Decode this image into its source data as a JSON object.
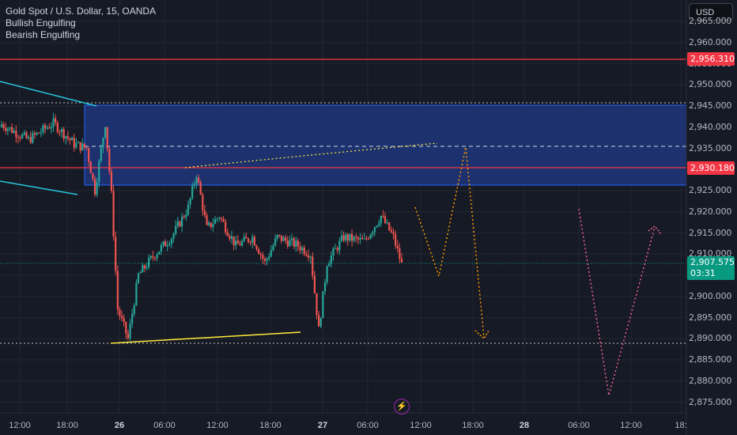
{
  "header": {
    "title": "Gold Spot / U.S. Dollar, 15, OANDA",
    "indicators": [
      "Bullish Engulfing",
      "Bearish Engulfing"
    ],
    "currency_button": "USD"
  },
  "price_axis": {
    "ticks": [
      "2,965.000",
      "2,960.000",
      "2,955.000",
      "2,950.000",
      "2,945.000",
      "2,940.000",
      "2,935.000",
      "2,930.000",
      "2,925.000",
      "2,920.000",
      "2,915.000",
      "2,910.000",
      "2,905.000",
      "2,900.000",
      "2,895.000",
      "2,890.000",
      "2,885.000",
      "2,880.000",
      "2,875.000"
    ],
    "tick_values": [
      2965,
      2960,
      2955,
      2950,
      2945,
      2940,
      2935,
      2930,
      2925,
      2920,
      2915,
      2910,
      2905,
      2900,
      2895,
      2890,
      2885,
      2880,
      2875
    ],
    "labels": {
      "resistance": "2,956.310",
      "zone_top": "2,930.180",
      "current_price": "2,907.575",
      "countdown": "03:31"
    }
  },
  "time_axis": {
    "ticks": [
      {
        "label": "12:00",
        "bold": false
      },
      {
        "label": "18:00",
        "bold": false
      },
      {
        "label": "26",
        "bold": true
      },
      {
        "label": "06:00",
        "bold": false
      },
      {
        "label": "12:00",
        "bold": false
      },
      {
        "label": "18:00",
        "bold": false
      },
      {
        "label": "27",
        "bold": true
      },
      {
        "label": "06:00",
        "bold": false
      },
      {
        "label": "12:00",
        "bold": false
      },
      {
        "label": "18:00",
        "bold": false
      },
      {
        "label": "28",
        "bold": true
      },
      {
        "label": "06:00",
        "bold": false
      },
      {
        "label": "12:00",
        "bold": false
      },
      {
        "label": "18:"
      }
    ]
  },
  "colors": {
    "background": "#161a25",
    "grid": "#232632",
    "bull": "#26a69a",
    "bear": "#ef5350",
    "zone_fill": "#1e3a8a",
    "zone_border": "#2962ff",
    "red_line": "#f23645",
    "cyan_line": "#26c6da",
    "yellow_line": "#ffeb3b",
    "orange_path": "#ff9800",
    "pink_path": "#f06292",
    "accent_green": "#089981"
  },
  "chart_data": {
    "type": "candlestick",
    "title": "Gold Spot / U.S. Dollar, 15, OANDA",
    "ylim": [
      2872,
      2968
    ],
    "horizontal_levels": [
      2956.31,
      2930.18,
      2945.5,
      2888.5
    ],
    "zone": {
      "from": 2926.0,
      "to": 2945.0
    },
    "last_price": 2907.575,
    "segments": [
      {
        "from": 2941,
        "to": 2937,
        "n": 14
      },
      {
        "from": 2937,
        "to": 2941,
        "n": 12
      },
      {
        "from": 2941,
        "to": 2936,
        "n": 10
      },
      {
        "from": 2936,
        "to": 2935,
        "n": 6
      },
      {
        "from": 2935,
        "to": 2925,
        "n": 4
      },
      {
        "from": 2925,
        "to": 2941,
        "n": 5
      },
      {
        "from": 2941,
        "to": 2924,
        "n": 3
      },
      {
        "from": 2924,
        "to": 2897,
        "n": 3
      },
      {
        "from": 2897,
        "to": 2890,
        "n": 5
      },
      {
        "from": 2890,
        "to": 2905,
        "n": 5
      },
      {
        "from": 2905,
        "to": 2910,
        "n": 8
      },
      {
        "from": 2910,
        "to": 2914,
        "n": 8
      },
      {
        "from": 2914,
        "to": 2921,
        "n": 8
      },
      {
        "from": 2921,
        "to": 2929,
        "n": 4
      },
      {
        "from": 2929,
        "to": 2916,
        "n": 5
      },
      {
        "from": 2916,
        "to": 2919,
        "n": 6
      },
      {
        "from": 2919,
        "to": 2912,
        "n": 8
      },
      {
        "from": 2912,
        "to": 2914,
        "n": 8
      },
      {
        "from": 2914,
        "to": 2908,
        "n": 6
      },
      {
        "from": 2908,
        "to": 2914,
        "n": 6
      },
      {
        "from": 2914,
        "to": 2912,
        "n": 10
      },
      {
        "from": 2912,
        "to": 2910,
        "n": 6
      },
      {
        "from": 2910,
        "to": 2892,
        "n": 4
      },
      {
        "from": 2892,
        "to": 2908,
        "n": 4
      },
      {
        "from": 2908,
        "to": 2914,
        "n": 8
      },
      {
        "from": 2914,
        "to": 2913,
        "n": 10
      },
      {
        "from": 2913,
        "to": 2919,
        "n": 8
      },
      {
        "from": 2919,
        "to": 2914,
        "n": 6
      },
      {
        "from": 2914,
        "to": 2907.5,
        "n": 4
      }
    ]
  }
}
